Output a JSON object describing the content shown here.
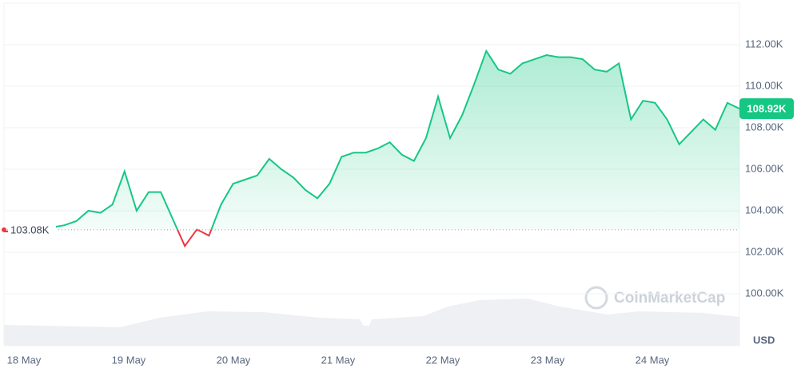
{
  "chart_data": {
    "type": "line",
    "series": [
      {
        "name": "Price",
        "color": "#16c784",
        "below_color": "#ea3943",
        "values": [
          103000,
          103000,
          103000,
          103100,
          103200,
          103300,
          103500,
          104000,
          103900,
          104300,
          105900,
          104000,
          104900,
          104900,
          103600,
          102300,
          103100,
          102800,
          104300,
          105300,
          105500,
          105700,
          106500,
          106000,
          105600,
          105000,
          104600,
          105300,
          106600,
          106800,
          106800,
          107000,
          107300,
          106700,
          106400,
          107500,
          109500,
          107500,
          108600,
          110100,
          111700,
          110800,
          110600,
          111100,
          111300,
          111500,
          111400,
          111400,
          111300,
          110800,
          110700,
          111100,
          108400,
          109300,
          109200,
          108400,
          107200,
          107800,
          108400,
          107900,
          109200,
          108920
        ]
      }
    ],
    "reference": {
      "value": 103080,
      "label": "103.08K"
    },
    "current_label": "108.92K",
    "xticks": [
      "18 May",
      "19 May",
      "20 May",
      "21 May",
      "22 May",
      "23 May",
      "24 May"
    ],
    "ylim": [
      97500,
      114000
    ],
    "yticks": [
      {
        "value": 100000,
        "label": "100.00K"
      },
      {
        "value": 102000,
        "label": "102.00K"
      },
      {
        "value": 104000,
        "label": "104.00K"
      },
      {
        "value": 106000,
        "label": "106.00K"
      },
      {
        "value": 108000,
        "label": "108.00K"
      },
      {
        "value": 110000,
        "label": "110.00K"
      },
      {
        "value": 112000,
        "label": "112.00K"
      }
    ],
    "y_unit": "USD",
    "watermark": "CoinMarketCap",
    "grid": true
  }
}
